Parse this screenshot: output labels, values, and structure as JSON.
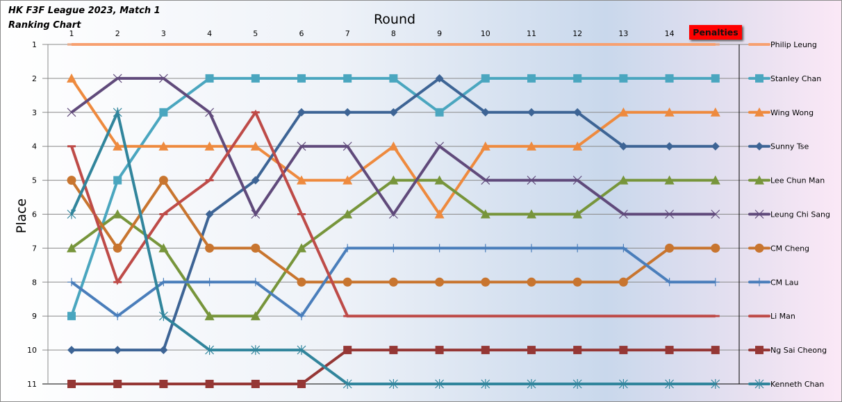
{
  "chart_data": {
    "type": "line",
    "title": "HK F3F League 2023, Match 1",
    "subtitle": "Ranking Chart",
    "xlabel": "Round",
    "ylabel": "Place",
    "x_ticks": [
      "1",
      "2",
      "3",
      "4",
      "5",
      "6",
      "7",
      "8",
      "9",
      "10",
      "11",
      "12",
      "13",
      "14"
    ],
    "extra_column_label": "Penalties",
    "y_ticks": [
      "1",
      "2",
      "3",
      "4",
      "5",
      "6",
      "7",
      "8",
      "9",
      "10",
      "11"
    ],
    "ylim": [
      1,
      11
    ],
    "y_reversed": true,
    "grid": true,
    "legend_position": "right",
    "series": [
      {
        "name": "Philip Leung",
        "color": "#f7a070",
        "marker": "none",
        "values": [
          1,
          1,
          1,
          1,
          1,
          1,
          1,
          1,
          1,
          1,
          1,
          1,
          1,
          1,
          1
        ]
      },
      {
        "name": "Stanley Chan",
        "color": "#4aa6bf",
        "marker": "square",
        "values": [
          9,
          5,
          3,
          2,
          2,
          2,
          2,
          2,
          3,
          2,
          2,
          2,
          2,
          2,
          2
        ]
      },
      {
        "name": "Wing Wong",
        "color": "#ee8a3e",
        "marker": "triangle",
        "values": [
          2,
          4,
          4,
          4,
          4,
          5,
          5,
          4,
          6,
          4,
          4,
          4,
          3,
          3,
          3
        ]
      },
      {
        "name": "Sunny Tse",
        "color": "#3d6495",
        "marker": "diamond",
        "values": [
          10,
          10,
          10,
          6,
          5,
          3,
          3,
          3,
          2,
          3,
          3,
          3,
          4,
          4,
          4
        ]
      },
      {
        "name": "Lee Chun Man",
        "color": "#77953b",
        "marker": "triangle",
        "values": [
          7,
          6,
          7,
          9,
          9,
          7,
          6,
          5,
          5,
          6,
          6,
          6,
          5,
          5,
          5
        ]
      },
      {
        "name": "Leung Chi Sang",
        "color": "#604a7b",
        "marker": "x",
        "values": [
          3,
          2,
          2,
          3,
          6,
          4,
          4,
          6,
          4,
          5,
          5,
          5,
          6,
          6,
          6
        ]
      },
      {
        "name": "CM Cheng",
        "color": "#c8752f",
        "marker": "circle",
        "values": [
          5,
          7,
          5,
          7,
          7,
          8,
          8,
          8,
          8,
          8,
          8,
          8,
          8,
          7,
          7
        ]
      },
      {
        "name": "CM Lau",
        "color": "#4a7ebb",
        "marker": "plus",
        "values": [
          8,
          9,
          8,
          8,
          8,
          9,
          7,
          7,
          7,
          7,
          7,
          7,
          7,
          8,
          8
        ]
      },
      {
        "name": "Li Man",
        "color": "#be4b48",
        "marker": "dash",
        "values": [
          4,
          8,
          6,
          5,
          3,
          6,
          9,
          9,
          9,
          9,
          9,
          9,
          9,
          9,
          9
        ]
      },
      {
        "name": "Ng Sai Cheong",
        "color": "#953735",
        "marker": "square",
        "values": [
          11,
          11,
          11,
          11,
          11,
          11,
          10,
          10,
          10,
          10,
          10,
          10,
          10,
          10,
          10
        ]
      },
      {
        "name": "Kenneth Chan",
        "color": "#31859c",
        "marker": "star",
        "values": [
          6,
          3,
          9,
          10,
          10,
          10,
          11,
          11,
          11,
          11,
          11,
          11,
          11,
          11,
          11
        ]
      }
    ]
  }
}
